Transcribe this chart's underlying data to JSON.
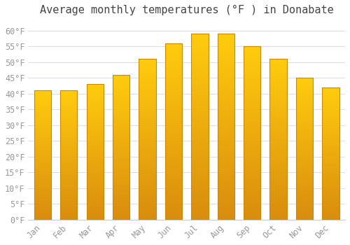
{
  "title": "Average monthly temperatures (°F ) in Donabate",
  "months": [
    "Jan",
    "Feb",
    "Mar",
    "Apr",
    "May",
    "Jun",
    "Jul",
    "Aug",
    "Sep",
    "Oct",
    "Nov",
    "Dec"
  ],
  "values": [
    41,
    41,
    43,
    46,
    51,
    56,
    59,
    59,
    55,
    51,
    45,
    42
  ],
  "bar_color_center": "#FFB800",
  "bar_color_edge": "#E08000",
  "bar_edge_color": "#CC8800",
  "background_color": "#FFFFFF",
  "plot_bg_color": "#FFFFFF",
  "grid_color": "#DDDDEE",
  "text_color": "#999999",
  "title_color": "#444444",
  "ylim": [
    0,
    63
  ],
  "ytick_step": 5,
  "title_fontsize": 11,
  "tick_fontsize": 8.5
}
